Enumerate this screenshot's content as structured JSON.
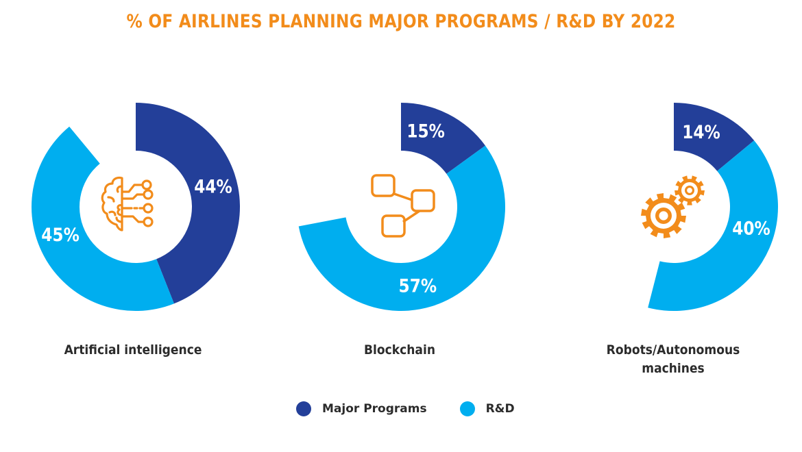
{
  "chart_data": {
    "type": "pie",
    "subtype": "donut",
    "title": "% OF AIRLINES PLANNING MAJOR PROGRAMS / R&D BY 2022",
    "legend_position": "bottom-center",
    "series_names": [
      "Major Programs",
      "R&D"
    ],
    "colors": {
      "Major Programs": "#233f99",
      "R&D": "#00aeef"
    },
    "charts": [
      {
        "category": "Artificial intelligence",
        "icon": "brain-circuit-icon",
        "values": {
          "Major Programs": 44,
          "R&D": 45
        },
        "labels": {
          "Major Programs": "44%",
          "R&D": "45%"
        }
      },
      {
        "category": "Blockchain",
        "icon": "blockchain-nodes-icon",
        "values": {
          "Major Programs": 15,
          "R&D": 57
        },
        "labels": {
          "Major Programs": "15%",
          "R&D": "57%"
        }
      },
      {
        "category": "Robots/Autonomous machines",
        "category_lines": [
          "Robots/Autonomous",
          "machines"
        ],
        "icon": "gears-icon",
        "values": {
          "Major Programs": 14,
          "R&D": 40
        },
        "labels": {
          "Major Programs": "14%",
          "R&D": "40%"
        }
      }
    ]
  },
  "title": "% OF AIRLINES PLANNING MAJOR PROGRAMS / R&D BY 2022",
  "labels": {
    "ai": "Artificial intelligence",
    "blockchain": "Blockchain",
    "robots_line1": "Robots/Autonomous",
    "robots_line2": "machines"
  },
  "legend": [
    {
      "label": "Major Programs",
      "color": "#233f99"
    },
    {
      "label": "R&D",
      "color": "#00aeef"
    }
  ],
  "icon_color": "#f28c1b"
}
